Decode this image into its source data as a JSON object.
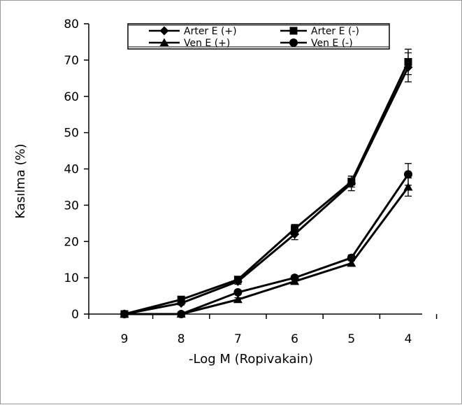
{
  "chart_data": {
    "type": "line",
    "title": "",
    "xlabel": "-Log M (Ropivakain)",
    "ylabel": "Kasılma (%)",
    "categories": [
      "9",
      "8",
      "7",
      "6",
      "5",
      "4"
    ],
    "ylim": [
      0,
      80
    ],
    "yticks": [
      "0",
      "10",
      "20",
      "30",
      "40",
      "50",
      "60",
      "70",
      "80"
    ],
    "grid": false,
    "legend_position": "top",
    "series": [
      {
        "name": "Arter E (+)",
        "marker": "diamond",
        "values": [
          0,
          3,
          9,
          22,
          36,
          68
        ],
        "errors": [
          0,
          0.5,
          0.8,
          1.5,
          2,
          4
        ]
      },
      {
        "name": "Arter E (-)",
        "marker": "square",
        "values": [
          0,
          4,
          9.5,
          23.5,
          36.5,
          69.5
        ],
        "errors": [
          0,
          0.5,
          0.8,
          1.2,
          1.5,
          3.5
        ]
      },
      {
        "name": "Ven E (+)",
        "marker": "triangle",
        "values": [
          0,
          0,
          4,
          9,
          14,
          35
        ],
        "errors": [
          0,
          0,
          0.5,
          0.5,
          0.8,
          2.5
        ]
      },
      {
        "name": "Ven E (-)",
        "marker": "circle",
        "values": [
          0,
          0,
          6,
          10,
          15.5,
          38.5
        ],
        "errors": [
          0,
          0,
          0.5,
          0.6,
          0.8,
          3
        ]
      }
    ]
  }
}
